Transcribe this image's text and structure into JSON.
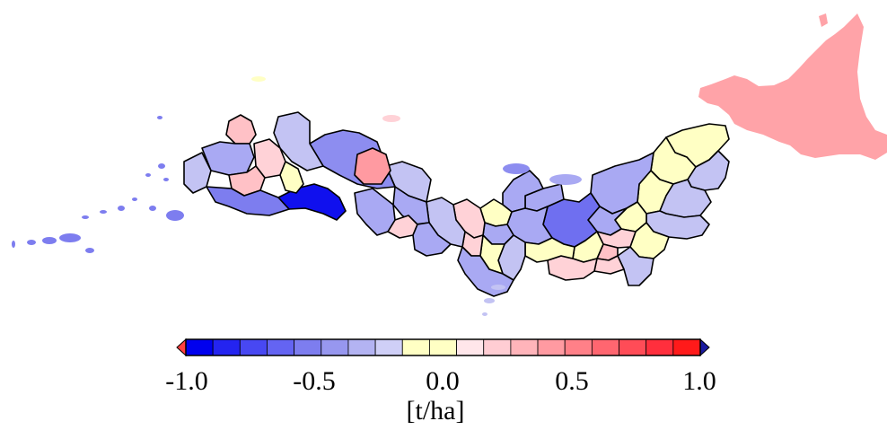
{
  "map": {
    "region_type": "prefecture",
    "color_scale": {
      "min": -1.0,
      "max": 1.0,
      "step": 0.1,
      "colors": [
        "#0000ee",
        "#2424f0",
        "#4848f2",
        "#6464f2",
        "#7d7def",
        "#9797ef",
        "#b3b3f2",
        "#cfcff7",
        "#ffffc4",
        "#ffffc4",
        "#ffe6ea",
        "#ffcdd3",
        "#ffb4ba",
        "#ff9aa1",
        "#ff8088",
        "#ff6670",
        "#ff4c57",
        "#ff2f3d",
        "#ff1a1a"
      ],
      "under_color": "#ff4040",
      "over_color": "#1a1aa0",
      "ticks": [
        "-1.0",
        "-0.5",
        "0.0",
        "0.5",
        "1.0"
      ],
      "unit": "[t/ha]"
    },
    "regions": [
      {
        "id": "hokkaido",
        "value": 0.4,
        "color": "#ffa3a8"
      },
      {
        "id": "aomori",
        "value": 0.0,
        "color": "#ffffc4"
      },
      {
        "id": "iwate",
        "value": -0.2,
        "color": "#c3c3f3"
      },
      {
        "id": "miyagi",
        "value": -0.2,
        "color": "#c3c3f3"
      },
      {
        "id": "akita",
        "value": 0.0,
        "color": "#ffffc4"
      },
      {
        "id": "yamagata",
        "value": 0.0,
        "color": "#ffffc4"
      },
      {
        "id": "fukushima",
        "value": -0.2,
        "color": "#c3c3f3"
      },
      {
        "id": "niigata",
        "value": -0.3,
        "color": "#a9a9f3"
      },
      {
        "id": "ibaraki",
        "value": 0.0,
        "color": "#ffffc4"
      },
      {
        "id": "tochigi",
        "value": 0.0,
        "color": "#ffffc4"
      },
      {
        "id": "gunma",
        "value": -0.3,
        "color": "#a9a9f3"
      },
      {
        "id": "chiba",
        "value": -0.2,
        "color": "#c3c3f3"
      },
      {
        "id": "saitama",
        "value": 0.2,
        "color": "#ffd2d7"
      },
      {
        "id": "tokyo",
        "value": 0.3,
        "color": "#ffc1c6"
      },
      {
        "id": "kanagawa",
        "value": 0.2,
        "color": "#ffd2d7"
      },
      {
        "id": "nagano",
        "value": -0.6,
        "color": "#6f6ff0"
      },
      {
        "id": "yamanashi",
        "value": 0.0,
        "color": "#ffffc4"
      },
      {
        "id": "shizuoka",
        "value": 0.2,
        "color": "#ffd2d7"
      },
      {
        "id": "toyama",
        "value": -0.3,
        "color": "#a9a9f3"
      },
      {
        "id": "ishikawa",
        "value": -0.3,
        "color": "#a9a9f3"
      },
      {
        "id": "fukui",
        "value": 0.0,
        "color": "#ffffc4"
      },
      {
        "id": "gifu",
        "value": -0.3,
        "color": "#a9a9f3"
      },
      {
        "id": "aichi",
        "value": 0.0,
        "color": "#ffffc4"
      },
      {
        "id": "mie",
        "value": -0.2,
        "color": "#c3c3f3"
      },
      {
        "id": "shiga",
        "value": -0.3,
        "color": "#a9a9f3"
      },
      {
        "id": "kyoto",
        "value": 0.2,
        "color": "#ffd2d7"
      },
      {
        "id": "osaka",
        "value": 0.2,
        "color": "#ffd2d7"
      },
      {
        "id": "hyogo",
        "value": -0.2,
        "color": "#c3c3f3"
      },
      {
        "id": "nara",
        "value": 0.0,
        "color": "#ffffc4"
      },
      {
        "id": "wakayama",
        "value": -0.3,
        "color": "#a9a9f3"
      },
      {
        "id": "tottori",
        "value": -0.2,
        "color": "#c3c3f3"
      },
      {
        "id": "shimane",
        "value": -0.4,
        "color": "#8d8df0"
      },
      {
        "id": "okayama",
        "value": -0.3,
        "color": "#a9a9f3"
      },
      {
        "id": "hiroshima",
        "value": 0.5,
        "color": "#ff9aa1"
      },
      {
        "id": "yamaguchi",
        "value": -0.2,
        "color": "#c3c3f3"
      },
      {
        "id": "tokushima",
        "value": -0.3,
        "color": "#a9a9f3"
      },
      {
        "id": "kagawa",
        "value": 0.2,
        "color": "#ffd2d7"
      },
      {
        "id": "ehime",
        "value": -0.3,
        "color": "#a9a9f3"
      },
      {
        "id": "kochi",
        "value": -0.9,
        "color": "#1010ee"
      },
      {
        "id": "fukuoka",
        "value": 0.3,
        "color": "#ffc1c6"
      },
      {
        "id": "saga",
        "value": -0.3,
        "color": "#a9a9f3"
      },
      {
        "id": "nagasaki",
        "value": -0.2,
        "color": "#c3c3f3"
      },
      {
        "id": "kumamoto",
        "value": 0.3,
        "color": "#ffc1c6"
      },
      {
        "id": "oita",
        "value": 0.2,
        "color": "#ffd2d7"
      },
      {
        "id": "miyazaki",
        "value": 0.0,
        "color": "#ffffc4"
      },
      {
        "id": "kagoshima",
        "value": -0.5,
        "color": "#7d7def"
      },
      {
        "id": "okinawa",
        "value": -0.5,
        "color": "#7d7def"
      }
    ]
  }
}
